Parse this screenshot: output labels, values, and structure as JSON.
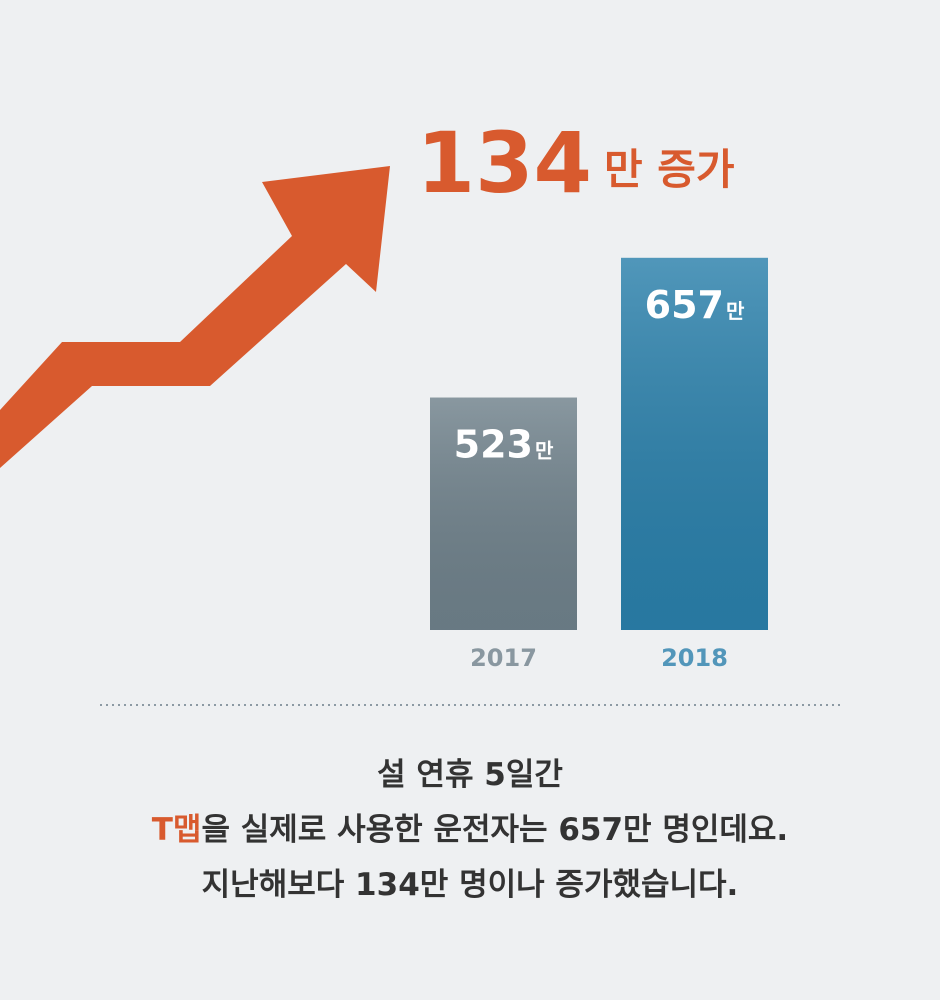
{
  "chart_data": {
    "type": "bar",
    "headline": {
      "number": "134",
      "unit": "만 증가"
    },
    "categories": [
      "2017",
      "2018"
    ],
    "values": [
      523,
      657
    ],
    "value_labels": [
      "523만",
      "657만"
    ],
    "colors": [
      "#6f818b",
      "#2a80ab"
    ],
    "ylim": [
      300,
      700
    ],
    "caption": {
      "line1": "설 연휴 5일간",
      "line2_highlight": "T맵",
      "line2_rest": "을 실제로 사용한 운전자는 657만 명인데요.",
      "line3": "지난해보다 134만 명이나 증가했습니다."
    }
  }
}
